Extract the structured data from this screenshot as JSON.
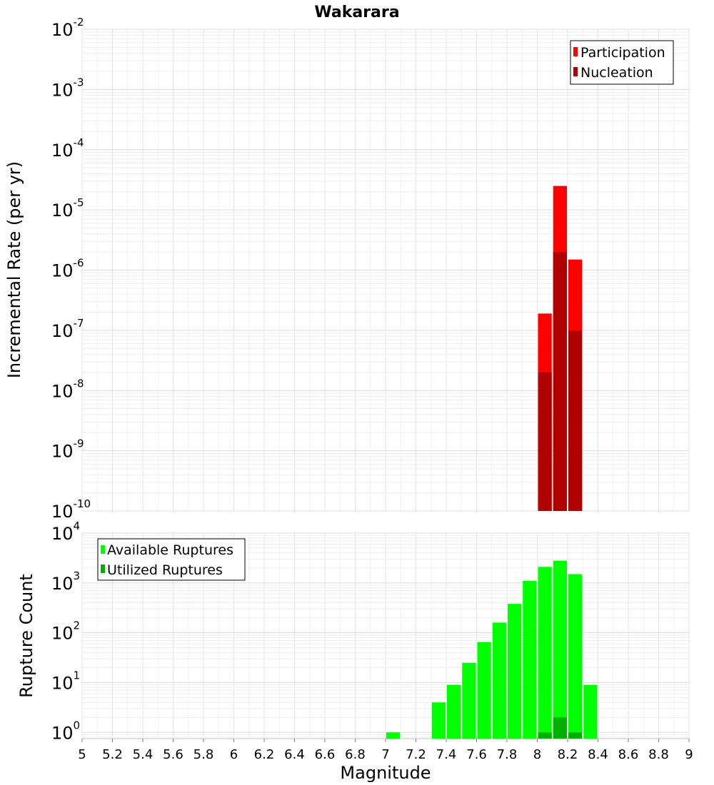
{
  "chart_data": [
    {
      "type": "bar",
      "title": "Wakarara",
      "ylabel": "Incremental Rate (per yr)",
      "xlabel": "",
      "yscale": "log",
      "ylim": [
        1e-10,
        0.01
      ],
      "xlim": [
        5,
        9
      ],
      "y_tick_exponents": [
        "-2",
        "-3",
        "-4",
        "-5",
        "-6",
        "-7",
        "-8",
        "-9",
        "-10"
      ],
      "legend_position": "top-right",
      "bar_width": 0.1,
      "series": [
        {
          "name": "Participation",
          "color": "#ff0000",
          "x": [
            8.05,
            8.15,
            8.25
          ],
          "values": [
            1.9e-07,
            2.5e-05,
            1.5e-06
          ]
        },
        {
          "name": "Nucleation",
          "color": "#b00000",
          "x": [
            8.05,
            8.15,
            8.25
          ],
          "values": [
            2e-08,
            2e-06,
            1e-07
          ]
        }
      ]
    },
    {
      "type": "bar",
      "title": "",
      "ylabel": "Rupture Count",
      "xlabel": "Magnitude",
      "yscale": "log",
      "ylim": [
        0.75,
        10000
      ],
      "xlim": [
        5,
        9
      ],
      "y_tick_exponents": [
        "4",
        "3",
        "2",
        "1",
        "0"
      ],
      "x_ticks": [
        "5",
        "5.2",
        "5.4",
        "5.6",
        "5.8",
        "6",
        "6.2",
        "6.4",
        "6.6",
        "6.8",
        "7",
        "7.2",
        "7.4",
        "7.6",
        "7.8",
        "8",
        "8.2",
        "8.4",
        "8.6",
        "8.8",
        "9"
      ],
      "legend_position": "top-left",
      "bar_width": 0.1,
      "series": [
        {
          "name": "Available Ruptures",
          "color": "#00ff00",
          "x": [
            7.05,
            7.35,
            7.45,
            7.55,
            7.65,
            7.75,
            7.85,
            7.95,
            8.05,
            8.15,
            8.25,
            8.35
          ],
          "values": [
            1,
            4,
            9,
            25,
            65,
            160,
            380,
            1100,
            2100,
            2800,
            1500,
            9
          ]
        },
        {
          "name": "Utilized Ruptures",
          "color": "#00b000",
          "x": [
            8.05,
            8.15,
            8.25
          ],
          "values": [
            1,
            2,
            1
          ]
        }
      ]
    }
  ]
}
